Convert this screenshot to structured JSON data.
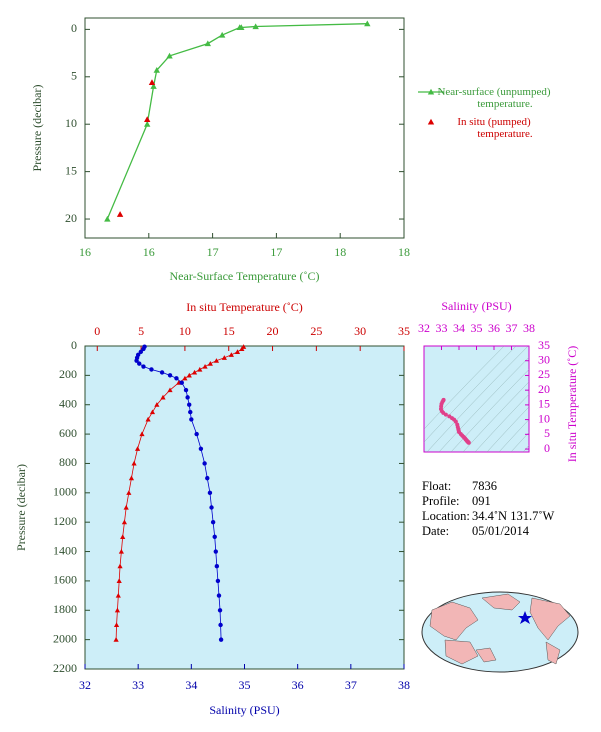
{
  "chart_data": [
    {
      "type": "line",
      "xlabel": "Near-Surface Temperature (˚C)",
      "ylabel": "Pressure (decibar)",
      "xlim": [
        16,
        18
      ],
      "xticks": [
        16,
        {
          "value": 16.4,
          "label": "16"
        },
        {
          "value": 16.8,
          "label": "17"
        },
        {
          "value": 17.2,
          "label": "17"
        },
        {
          "value": 17.6,
          "label": "18"
        },
        18
      ],
      "ylim": [
        22,
        -1.2
      ],
      "yticks": [
        0,
        5,
        10,
        15,
        20
      ],
      "series": [
        {
          "name": "Near-surface (unpumped) temperature.",
          "color": "#44bb44",
          "line": true,
          "y": [
            -0.6,
            -0.3,
            -0.2,
            -0.2,
            0.6,
            1.5,
            2.8,
            4.3,
            6.0,
            10.0,
            20.0
          ],
          "values": [
            17.77,
            17.07,
            16.98,
            16.97,
            16.86,
            16.77,
            16.53,
            16.45,
            16.43,
            16.39,
            16.14
          ]
        },
        {
          "name": "In situ (pumped) temperature.",
          "color": "#dd0000",
          "line": false,
          "y": [
            5.6,
            9.5,
            19.5
          ],
          "values": [
            16.42,
            16.39,
            16.22
          ]
        }
      ]
    },
    {
      "type": "profile",
      "xlabel": "Salinity (PSU)",
      "x2label": "In situ Temperature (˚C)",
      "ylabel": "Pressure (decibar)",
      "xlim": [
        32,
        38
      ],
      "xticks": [
        32,
        33,
        34,
        35,
        36,
        37,
        38
      ],
      "x2lim": [
        -1.4,
        35
      ],
      "x2ticks": [
        0,
        5,
        10,
        15,
        20,
        25,
        30,
        35
      ],
      "ylim": [
        2200,
        0
      ],
      "yticks": [
        0,
        200,
        400,
        600,
        800,
        1000,
        1200,
        1400,
        1600,
        1800,
        2000,
        2200
      ],
      "background": "#cdeef8",
      "pressure": [
        5,
        20,
        40,
        60,
        80,
        100,
        120,
        140,
        160,
        180,
        200,
        220,
        250,
        300,
        350,
        400,
        450,
        500,
        600,
        700,
        800,
        900,
        1000,
        1100,
        1200,
        1300,
        1400,
        1500,
        1600,
        1700,
        1800,
        1900,
        2000
      ],
      "series": [
        {
          "color": "#dd0000",
          "axis": "x2",
          "marker": "triangle",
          "values": [
            16.7,
            16.5,
            16.0,
            15.3,
            14.5,
            13.6,
            12.9,
            12.3,
            11.7,
            11.1,
            10.5,
            10.0,
            9.3,
            8.3,
            7.5,
            6.8,
            6.3,
            5.8,
            5.1,
            4.6,
            4.2,
            3.9,
            3.6,
            3.3,
            3.1,
            2.9,
            2.75,
            2.6,
            2.5,
            2.4,
            2.3,
            2.2,
            2.15
          ]
        },
        {
          "color": "#0000cc",
          "axis": "x",
          "marker": "circle",
          "values": [
            33.12,
            33.1,
            33.05,
            33.0,
            32.98,
            32.97,
            33.02,
            33.1,
            33.25,
            33.45,
            33.6,
            33.72,
            33.82,
            33.9,
            33.93,
            33.96,
            33.98,
            34.0,
            34.1,
            34.18,
            34.25,
            34.3,
            34.35,
            34.38,
            34.41,
            34.44,
            34.46,
            34.48,
            34.5,
            34.52,
            34.54,
            34.55,
            34.56
          ]
        }
      ]
    },
    {
      "type": "ts",
      "xlabel": "Salinity (PSU)",
      "ylabel": "In situ Temperature (˚C)",
      "xlim": [
        32,
        38
      ],
      "xticks": [
        32,
        33,
        34,
        35,
        36,
        37,
        38
      ],
      "ylim": [
        -1,
        35
      ],
      "yticks": [
        0,
        5,
        10,
        15,
        20,
        25,
        30,
        35
      ],
      "color": "#e0408a"
    }
  ],
  "info": [
    {
      "label": "Float:",
      "value": "7836"
    },
    {
      "label": "Profile:",
      "value": "091"
    },
    {
      "label": "Location:",
      "value": "34.4˚N  131.7˚W"
    },
    {
      "label": "Date:",
      "value": "05/01/2014"
    }
  ]
}
